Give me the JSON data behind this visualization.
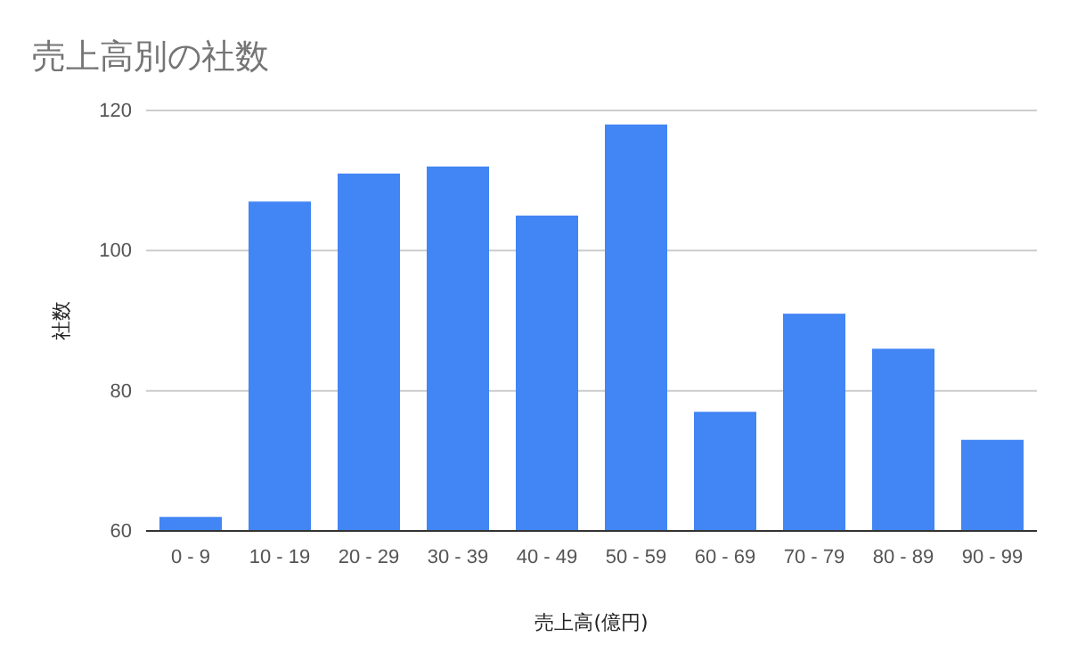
{
  "chart_data": {
    "type": "bar",
    "title": "売上高別の社数",
    "xlabel": "売上高(億円)",
    "ylabel": "社数",
    "categories": [
      "0 - 9",
      "10 - 19",
      "20 - 29",
      "30 - 39",
      "40 - 49",
      "50 - 59",
      "60 - 69",
      "70 - 79",
      "80 - 89",
      "90 - 99"
    ],
    "values": [
      62,
      107,
      111,
      112,
      105,
      118,
      77,
      91,
      86,
      73
    ],
    "color": "#4285f4",
    "ylim": [
      60,
      120
    ],
    "yticks": [
      60,
      80,
      100,
      120
    ],
    "grid": "y"
  }
}
